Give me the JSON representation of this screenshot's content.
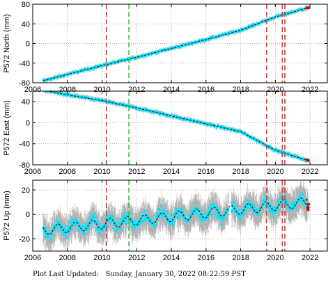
{
  "footer": {
    "label": "Plot Last Updated:",
    "timestamp": "Sunday, January 30, 2022 08:22:59 PST"
  },
  "colors": {
    "data": "#00e5ff",
    "error_bars": "#b4b4b4",
    "model": "#000000",
    "recent": "#e00000",
    "offset_red": "#e8322a",
    "offset_green": "#2ec82e"
  },
  "chart_data": [
    {
      "type": "scatter",
      "ylabel": "P572 North (mm)",
      "xlim": [
        2006,
        2023
      ],
      "ylim": [
        -80,
        80
      ],
      "xticks": [
        2006,
        2008,
        2010,
        2012,
        2014,
        2016,
        2018,
        2020,
        2022
      ],
      "yticks": [
        -80,
        -40,
        0,
        40,
        80
      ],
      "grid": true,
      "series": [
        {
          "x": [
            2006.6,
            2008,
            2010,
            2012,
            2014,
            2016,
            2018,
            2020,
            2021.9
          ],
          "y": [
            -76,
            -63,
            -45,
            -28,
            -10,
            8,
            27,
            54,
            73
          ]
        }
      ],
      "red_lines": [
        2010.25,
        2019.5,
        2020.4,
        2020.55
      ],
      "green_lines": [
        2011.55
      ]
    },
    {
      "type": "scatter",
      "ylabel": "P572 East (mm)",
      "xlim": [
        2006,
        2023
      ],
      "ylim": [
        -80,
        60
      ],
      "xticks": [
        2006,
        2008,
        2010,
        2012,
        2014,
        2016,
        2018,
        2020,
        2022
      ],
      "yticks": [
        -80,
        -40,
        0,
        40
      ],
      "grid": true,
      "series": [
        {
          "x": [
            2006.6,
            2008,
            2010,
            2012,
            2014,
            2016,
            2018,
            2020,
            2021.9
          ],
          "y": [
            62,
            53,
            42,
            28,
            13,
            -2,
            -17,
            -52,
            -72
          ]
        }
      ],
      "red_lines": [
        2010.25,
        2019.5,
        2020.4,
        2020.55
      ],
      "green_lines": [
        2011.55
      ]
    },
    {
      "type": "scatter",
      "ylabel": "P572 Up (mm)",
      "xlim": [
        2006,
        2023
      ],
      "ylim": [
        -30,
        28
      ],
      "xticks": [
        2006,
        2008,
        2010,
        2012,
        2014,
        2016,
        2018,
        2020,
        2022
      ],
      "yticks": [
        -20,
        0,
        20
      ],
      "grid": true,
      "trend": {
        "start": [
          2006.6,
          -13
        ],
        "end": [
          2021.9,
          10
        ],
        "seasonal_amplitude": 4
      },
      "red_lines": [
        2010.25,
        2019.5,
        2020.4,
        2020.55
      ],
      "green_lines": [
        2011.55
      ]
    }
  ]
}
